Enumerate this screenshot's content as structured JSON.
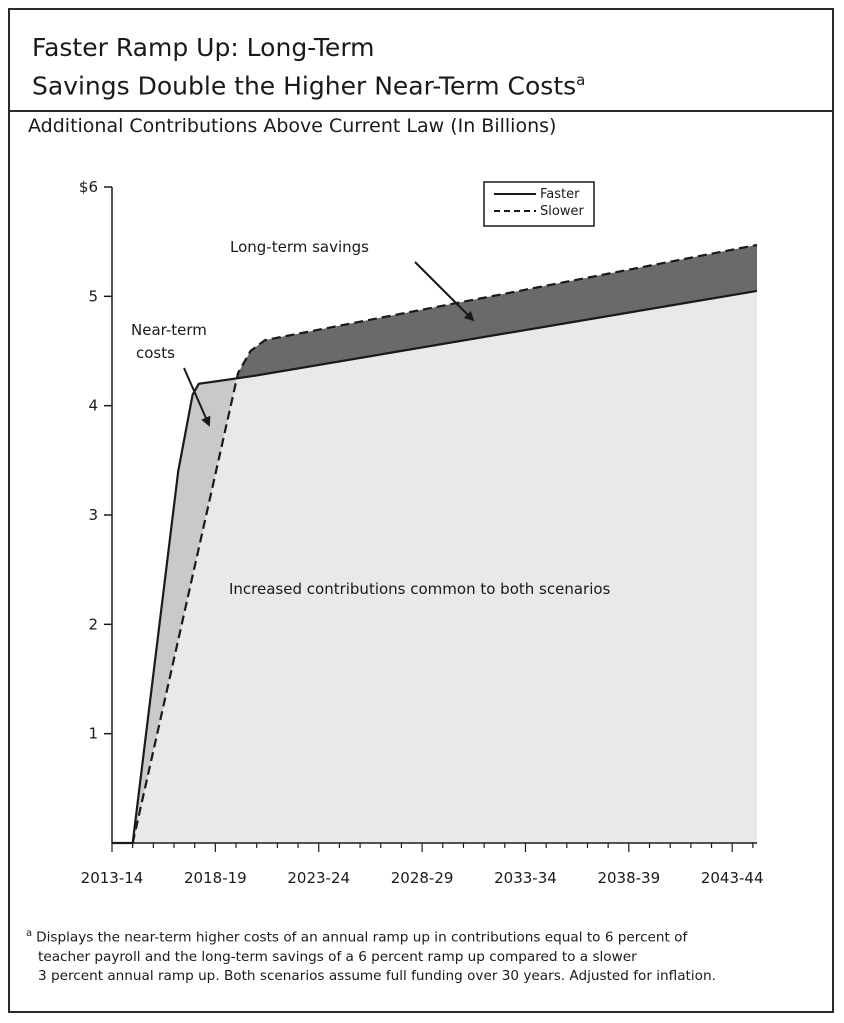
{
  "figure": {
    "title_line1": "Faster Ramp Up: Long-Term",
    "title_line2": "Savings Double the Higher Near-Term Costs",
    "title_marker": "a",
    "subtitle": "Additional Contributions Above Current Law (In Billions)",
    "footnote_marker": "a",
    "footnote_line1": "Displays the near-term higher costs of an annual ramp up in contributions equal to 6 percent of",
    "footnote_line2": "teacher payroll and the long-term savings of a 6 percent ramp up compared to a slower",
    "footnote_line3": "3 percent annual ramp up. Both scenarios assume full funding over 30 years. Adjusted for inflation."
  },
  "chart_data": {
    "type": "area",
    "x_tick_labels": [
      "2013-14",
      "2018-19",
      "2023-24",
      "2028-29",
      "2033-34",
      "2038-39",
      "2043-44"
    ],
    "y_tick_labels": [
      "$6",
      "5",
      "4",
      "3",
      "2",
      "1"
    ],
    "y_ticks": [
      6,
      5,
      4,
      3,
      2,
      1
    ],
    "ylim": [
      0,
      6
    ],
    "xlim": [
      2013,
      2044.2
    ],
    "x_tick_positions": [
      2013,
      2018,
      2023,
      2028,
      2033,
      2038,
      2043
    ],
    "series": [
      {
        "name": "Faster",
        "style": "solid",
        "points": [
          [
            2013,
            0
          ],
          [
            2014,
            0
          ],
          [
            2016.2,
            3.4
          ],
          [
            2016.9,
            4.1
          ],
          [
            2017.2,
            4.2
          ],
          [
            2019.8,
            4.27
          ],
          [
            2044.2,
            5.05
          ]
        ]
      },
      {
        "name": "Slower",
        "style": "dashed",
        "points": [
          [
            2014,
            0
          ],
          [
            2019.1,
            4.3
          ],
          [
            2019.7,
            4.5
          ],
          [
            2020.4,
            4.6
          ],
          [
            2044.2,
            5.47
          ]
        ]
      }
    ],
    "annotations": {
      "long_term": "Long-term savings",
      "near_term_line1": "Near-term",
      "near_term_line2": "costs",
      "common": "Increased contributions common to both scenarios"
    },
    "legend_position": "top-right",
    "grid": false,
    "colors": {
      "common_fill": "#e9e9e9",
      "near_term_fill": "#c9c9c9",
      "savings_fill": "#6a6a6a",
      "line": "#1a1a1a"
    }
  }
}
